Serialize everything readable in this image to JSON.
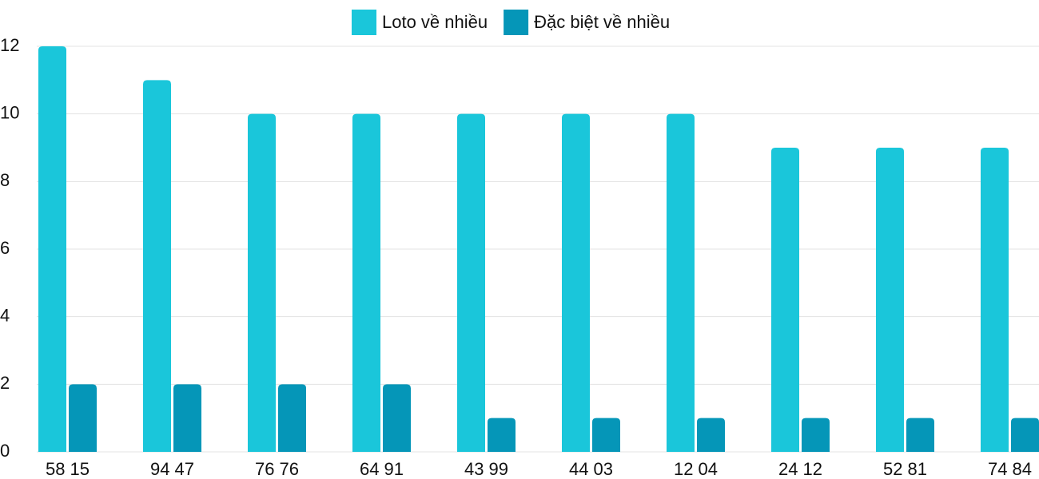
{
  "chart_data": {
    "type": "bar",
    "categories": [
      "58 15",
      "94 47",
      "76 76",
      "64 91",
      "43 99",
      "44 03",
      "12 04",
      "24 12",
      "52 81",
      "74 84"
    ],
    "series": [
      {
        "name": "Loto về nhiều",
        "color": "#1ac6da",
        "values": [
          12,
          11,
          10,
          10,
          10,
          10,
          10,
          9,
          9,
          9
        ]
      },
      {
        "name": "Đặc biệt về nhiều",
        "color": "#0596b8",
        "values": [
          2,
          2,
          2,
          2,
          1,
          1,
          1,
          1,
          1,
          1
        ]
      }
    ],
    "ylim": [
      0,
      12
    ],
    "yticks": [
      0,
      2,
      4,
      6,
      8,
      10,
      12
    ],
    "grid": true
  }
}
